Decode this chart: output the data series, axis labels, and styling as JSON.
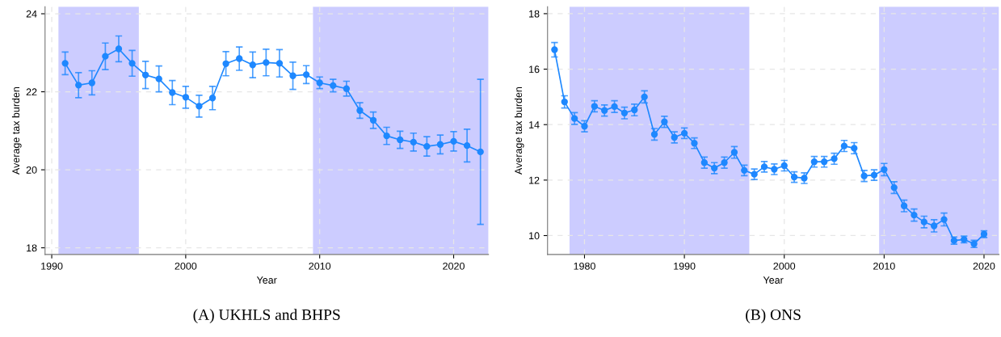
{
  "chart_data": [
    {
      "type": "line",
      "xlabel": "Year",
      "ylabel": "Average tax burden",
      "annotations": [
        "(A) UKHLS and BHPS"
      ],
      "xlim": [
        1989.5,
        2022.6
      ],
      "ylim": [
        17.83,
        24.18
      ],
      "xticks": [
        1990,
        2000,
        2010,
        2020
      ],
      "yticks": [
        18,
        20,
        22,
        24
      ],
      "grid": true,
      "marker": "circle",
      "line_style": "solid",
      "bands": [
        {
          "axis": "x",
          "from": 1990.5,
          "to": 1996.5,
          "color": "#ccccff"
        },
        {
          "axis": "x",
          "from": 2009.5,
          "to": 2022.6,
          "color": "#ccccff"
        }
      ],
      "series": [
        {
          "color": "#1e88ff",
          "x": [
            1991,
            1992,
            1993,
            1994,
            1995,
            1996,
            1997,
            1998,
            1999,
            2000,
            2001,
            2002,
            2003,
            2004,
            2005,
            2006,
            2007,
            2008,
            2009,
            2010,
            2011,
            2012,
            2013,
            2014,
            2015,
            2016,
            2017,
            2018,
            2019,
            2020,
            2021,
            2022
          ],
          "values": [
            22.73,
            22.17,
            22.23,
            22.91,
            23.1,
            22.73,
            22.43,
            22.33,
            21.98,
            21.86,
            21.63,
            21.84,
            22.72,
            22.85,
            22.69,
            22.75,
            22.73,
            22.41,
            22.44,
            22.23,
            22.16,
            22.08,
            21.52,
            21.27,
            20.87,
            20.77,
            20.71,
            20.6,
            20.65,
            20.73,
            20.62,
            20.46
          ],
          "errors": [
            0.29,
            0.32,
            0.31,
            0.34,
            0.33,
            0.33,
            0.35,
            0.33,
            0.31,
            0.28,
            0.28,
            0.3,
            0.31,
            0.3,
            0.33,
            0.34,
            0.35,
            0.35,
            0.23,
            0.15,
            0.16,
            0.19,
            0.2,
            0.21,
            0.22,
            0.22,
            0.23,
            0.25,
            0.24,
            0.25,
            0.42,
            1.86
          ]
        }
      ]
    },
    {
      "type": "line",
      "xlabel": "Year",
      "ylabel": "Average tax burden",
      "annotations": [
        "(B) ONS"
      ],
      "xlim": [
        1976.3,
        2021.5
      ],
      "ylim": [
        9.32,
        18.25
      ],
      "xticks": [
        1980,
        1990,
        2000,
        2010,
        2020
      ],
      "yticks": [
        10,
        12,
        14,
        16,
        18
      ],
      "grid": true,
      "marker": "circle",
      "line_style": "solid",
      "bands": [
        {
          "axis": "x",
          "from": 1978.5,
          "to": 1996.5,
          "color": "#ccccff"
        },
        {
          "axis": "x",
          "from": 2009.5,
          "to": 2021.5,
          "color": "#ccccff"
        }
      ],
      "series": [
        {
          "color": "#1e88ff",
          "x": [
            1977,
            1978,
            1979,
            1980,
            1981,
            1982,
            1983,
            1984,
            1985,
            1986,
            1987,
            1988,
            1989,
            1990,
            1991,
            1992,
            1993,
            1994,
            1995,
            1996,
            1997,
            1998,
            1999,
            2000,
            2001,
            2002,
            2003,
            2004,
            2005,
            2006,
            2007,
            2008,
            2009,
            2010,
            2011,
            2012,
            2013,
            2014,
            2015,
            2016,
            2017,
            2018,
            2019,
            2020
          ],
          "values": [
            16.7,
            14.82,
            14.22,
            13.94,
            14.66,
            14.51,
            14.65,
            14.42,
            14.53,
            15.0,
            13.65,
            14.1,
            13.54,
            13.69,
            13.33,
            12.63,
            12.43,
            12.63,
            13.0,
            12.35,
            12.21,
            12.48,
            12.39,
            12.52,
            12.11,
            12.07,
            12.66,
            12.66,
            12.77,
            13.23,
            13.15,
            12.15,
            12.18,
            12.38,
            11.73,
            11.07,
            10.74,
            10.49,
            10.35,
            10.58,
            9.82,
            9.86,
            9.7,
            10.05
          ],
          "errors": [
            0.26,
            0.22,
            0.21,
            0.2,
            0.2,
            0.2,
            0.21,
            0.21,
            0.21,
            0.22,
            0.21,
            0.2,
            0.2,
            0.19,
            0.19,
            0.2,
            0.2,
            0.2,
            0.21,
            0.19,
            0.19,
            0.19,
            0.19,
            0.19,
            0.19,
            0.19,
            0.19,
            0.19,
            0.2,
            0.2,
            0.2,
            0.2,
            0.19,
            0.22,
            0.21,
            0.21,
            0.22,
            0.21,
            0.22,
            0.23,
            0.13,
            0.12,
            0.13,
            0.12
          ]
        }
      ]
    }
  ]
}
